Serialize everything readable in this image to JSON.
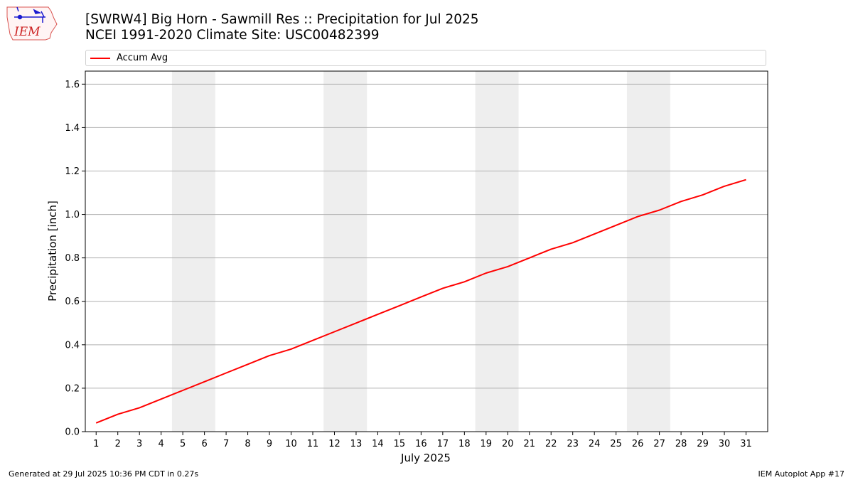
{
  "header": {
    "title_line1": "[SWRW4] Big Horn - Sawmill Res :: Precipitation for Jul 2025",
    "title_line2": "NCEI 1991-2020 Climate Site: USC00482399"
  },
  "logo": {
    "text": "IEM",
    "icon": "iowa-state-outline-weather-station-icon"
  },
  "footer": {
    "left": "Generated at 29 Jul 2025 10:36 PM CDT in 0.27s",
    "right": "IEM Autoplot App #17"
  },
  "colors": {
    "series": "#ff0000",
    "weekend_band": "#eeeeee",
    "grid": "#b0b0b0"
  },
  "chart_data": {
    "type": "line",
    "xlabel": "July 2025",
    "ylabel": "Precipitation [inch]",
    "xlim": [
      0.5,
      32
    ],
    "ylim": [
      0,
      1.66
    ],
    "yticks": [
      0.0,
      0.2,
      0.4,
      0.6,
      0.8,
      1.0,
      1.2,
      1.4,
      1.6
    ],
    "ytick_labels": [
      "0.0",
      "0.2",
      "0.4",
      "0.6",
      "0.8",
      "1.0",
      "1.2",
      "1.4",
      "1.6"
    ],
    "x": [
      1,
      2,
      3,
      4,
      5,
      6,
      7,
      8,
      9,
      10,
      11,
      12,
      13,
      14,
      15,
      16,
      17,
      18,
      19,
      20,
      21,
      22,
      23,
      24,
      25,
      26,
      27,
      28,
      29,
      30,
      31
    ],
    "grid": "horizontal",
    "legend_position": "top",
    "weekend_bands": [
      [
        5,
        6
      ],
      [
        12,
        13
      ],
      [
        19,
        20
      ],
      [
        26,
        27
      ]
    ],
    "series": [
      {
        "name": "Accum Avg",
        "color": "#ff0000",
        "values": [
          0.04,
          0.08,
          0.11,
          0.15,
          0.19,
          0.23,
          0.27,
          0.31,
          0.35,
          0.38,
          0.42,
          0.46,
          0.5,
          0.54,
          0.58,
          0.62,
          0.66,
          0.69,
          0.73,
          0.76,
          0.8,
          0.84,
          0.87,
          0.91,
          0.95,
          0.99,
          1.02,
          1.06,
          1.09,
          1.13,
          1.16
        ]
      }
    ]
  }
}
